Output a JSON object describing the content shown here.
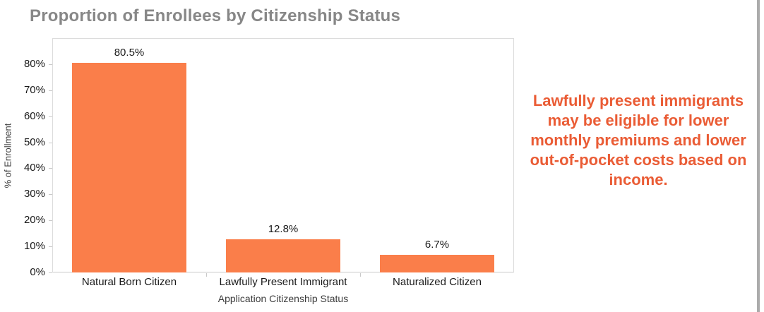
{
  "chart_data": {
    "type": "bar",
    "title": "Proportion of Enrollees by Citizenship Status",
    "categories": [
      "Natural Born Citizen",
      "Lawfully Present Immigrant",
      "Naturalized Citizen"
    ],
    "values": [
      80.5,
      12.8,
      6.7
    ],
    "value_labels": [
      "80.5%",
      "12.8%",
      "6.7%"
    ],
    "xlabel": "Application Citizenship Status",
    "ylabel": "% of Enrollment",
    "ylim": [
      0,
      90
    ],
    "ytick_step": 10,
    "yticks": [
      "0%",
      "10%",
      "20%",
      "30%",
      "40%",
      "50%",
      "60%",
      "70%",
      "80%"
    ],
    "grid": false,
    "legend": "none",
    "bar_color": "#FA7E4A",
    "title_color": "#878787",
    "axis_text_color": "#1a1a1a"
  },
  "annotation": {
    "text": "Lawfully present immigrants may be eligible for lower monthly premiums and lower out-of-pocket costs based on income.",
    "color": "#EA5C35"
  },
  "page": {
    "background_color": "#ffffff",
    "right_edge_line_color": "#ababab"
  }
}
